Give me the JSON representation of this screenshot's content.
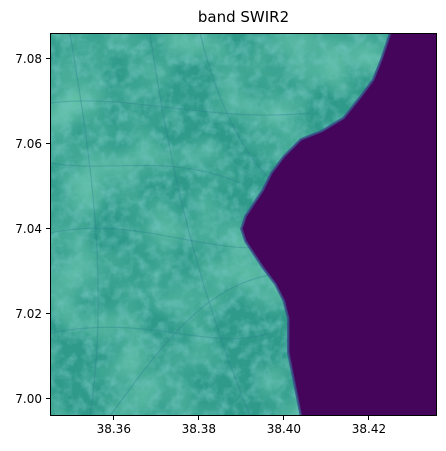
{
  "title": "band SWIR2",
  "chart_data": {
    "type": "heatmap",
    "title": "band SWIR2",
    "xlabel": "",
    "ylabel": "",
    "xlim": [
      38.345,
      38.436
    ],
    "ylim": [
      6.996,
      7.086
    ],
    "x_ticks": [
      "38.36",
      "38.38",
      "38.40",
      "38.42"
    ],
    "x_tick_values": [
      38.36,
      38.38,
      38.4,
      38.42
    ],
    "y_ticks": [
      "7.08",
      "7.06",
      "7.04",
      "7.02",
      "7.00"
    ],
    "y_tick_values": [
      7.08,
      7.06,
      7.04,
      7.02,
      7.0
    ],
    "colormap": "viridis",
    "colors": {
      "land": "#2f9a8a",
      "land_light": "#3fb889",
      "land_dark": "#2b7d8e",
      "water": "#44055a",
      "shore": "#3b4d8b"
    },
    "shoreline": [
      [
        38.425,
        7.086
      ],
      [
        38.423,
        7.08
      ],
      [
        38.421,
        7.075
      ],
      [
        38.418,
        7.071
      ],
      [
        38.414,
        7.066
      ],
      [
        38.409,
        7.063
      ],
      [
        38.404,
        7.061
      ],
      [
        38.4,
        7.057
      ],
      [
        38.397,
        7.053
      ],
      [
        38.395,
        7.049
      ],
      [
        38.393,
        7.046
      ],
      [
        38.391,
        7.043
      ],
      [
        38.39,
        7.04
      ],
      [
        38.391,
        7.037
      ],
      [
        38.393,
        7.034
      ],
      [
        38.395,
        7.031
      ],
      [
        38.398,
        7.027
      ],
      [
        38.4,
        7.023
      ],
      [
        38.401,
        7.019
      ],
      [
        38.401,
        7.015
      ],
      [
        38.401,
        7.011
      ],
      [
        38.402,
        7.006
      ],
      [
        38.403,
        7.001
      ],
      [
        38.404,
        6.996
      ]
    ]
  }
}
